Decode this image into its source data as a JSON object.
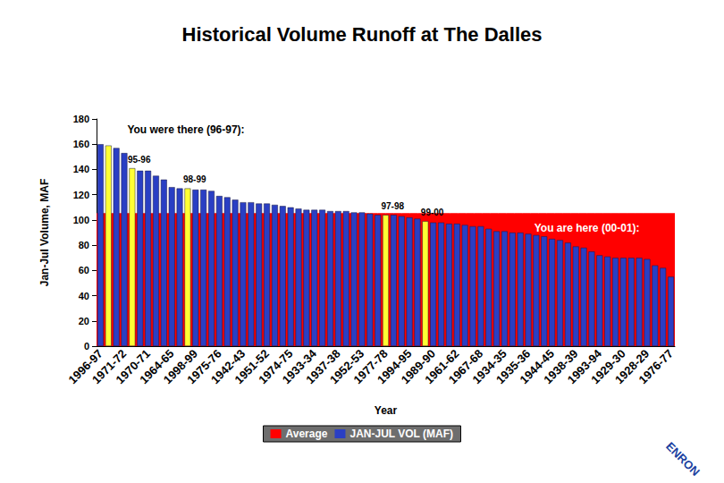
{
  "chart_data": {
    "type": "bar",
    "title": "Historical Volume Runoff at The Dalles",
    "x_label": "Year",
    "y_label": "Jan-Jul Volume, MAF",
    "categories": [
      "1996-97",
      null,
      null,
      "1971-72",
      null,
      null,
      "1970-71",
      null,
      null,
      "1964-65",
      null,
      null,
      "1998-99",
      null,
      null,
      "1975-76",
      null,
      null,
      "1942-43",
      null,
      null,
      "1951-52",
      null,
      null,
      "1974-75",
      null,
      null,
      "1933-34",
      null,
      null,
      "1937-38",
      null,
      null,
      "1952-53",
      null,
      null,
      "1977-78",
      null,
      null,
      "1994-95",
      null,
      null,
      "1989-90",
      null,
      null,
      "1961-62",
      null,
      null,
      "1967-68",
      null,
      null,
      "1934-35",
      null,
      null,
      "1935-36",
      null,
      null,
      "1944-45",
      null,
      null,
      "1938-39",
      null,
      null,
      "1993-94",
      null,
      null,
      "1929-30",
      null,
      null,
      "1928-29",
      null,
      null,
      "1976-77"
    ],
    "series": [
      {
        "name": "Average",
        "type": "area",
        "color": "#ff0000",
        "values": [
          105,
          105,
          105,
          105,
          105,
          105,
          105,
          105,
          105,
          105,
          105,
          105,
          105,
          105,
          105,
          105,
          105,
          105,
          105,
          105,
          105,
          105,
          105,
          105,
          105,
          105,
          105,
          105,
          105,
          105,
          105,
          105,
          105,
          105,
          105,
          105,
          105,
          105,
          105,
          105,
          105,
          105,
          105,
          105,
          105,
          105,
          105,
          105,
          105,
          105,
          105,
          105,
          105,
          105,
          105,
          105,
          105,
          105,
          105,
          105,
          105,
          105,
          105,
          105,
          105,
          105,
          105,
          105,
          105,
          105,
          105,
          105,
          105
        ]
      },
      {
        "name": "JAN-JUL VOL (MAF)",
        "type": "bar",
        "color": "#2a3fc4",
        "values": [
          160,
          159,
          157,
          153,
          141,
          139,
          139,
          135,
          132,
          126,
          125,
          125,
          124,
          124,
          123,
          119,
          118,
          116,
          114,
          114,
          113,
          113,
          112,
          111,
          110,
          109,
          108,
          108,
          108,
          107,
          107,
          107,
          106,
          106,
          105,
          104,
          104,
          104,
          103,
          102,
          101,
          99,
          98,
          98,
          97,
          97,
          96,
          95,
          95,
          93,
          91,
          91,
          90,
          90,
          89,
          88,
          87,
          85,
          84,
          82,
          79,
          78,
          75,
          72,
          71,
          70,
          70,
          70,
          70,
          69,
          64,
          62,
          55
        ],
        "colors": [
          "#2a3fc4",
          "#ffff33",
          "#2a3fc4",
          "#2a3fc4",
          "#ffff33",
          "#2a3fc4",
          "#2a3fc4",
          "#2a3fc4",
          "#2a3fc4",
          "#2a3fc4",
          "#2a3fc4",
          "#ffff33",
          "#2a3fc4",
          "#2a3fc4",
          "#2a3fc4",
          "#2a3fc4",
          "#2a3fc4",
          "#2a3fc4",
          "#2a3fc4",
          "#2a3fc4",
          "#2a3fc4",
          "#2a3fc4",
          "#2a3fc4",
          "#2a3fc4",
          "#2a3fc4",
          "#2a3fc4",
          "#2a3fc4",
          "#2a3fc4",
          "#2a3fc4",
          "#2a3fc4",
          "#2a3fc4",
          "#2a3fc4",
          "#2a3fc4",
          "#2a3fc4",
          "#2a3fc4",
          "#2a3fc4",
          "#ffff33",
          "#2a3fc4",
          "#2a3fc4",
          "#2a3fc4",
          "#2a3fc4",
          "#ffff33",
          "#2a3fc4",
          "#2a3fc4",
          "#2a3fc4",
          "#2a3fc4",
          "#2a3fc4",
          "#2a3fc4",
          "#2a3fc4",
          "#2a3fc4",
          "#2a3fc4",
          "#2a3fc4",
          "#2a3fc4",
          "#2a3fc4",
          "#2a3fc4",
          "#2a3fc4",
          "#2a3fc4",
          "#2a3fc4",
          "#2a3fc4",
          "#2a3fc4",
          "#2a3fc4",
          "#2a3fc4",
          "#2a3fc4",
          "#2a3fc4",
          "#2a3fc4",
          "#2a3fc4",
          "#2a3fc4",
          "#2a3fc4",
          "#2a3fc4",
          "#2a3fc4",
          "#2a3fc4",
          "#2a3fc4",
          "#2a3fc4"
        ]
      }
    ],
    "annotations": [
      "You were there (96-97):",
      "95-96",
      "98-99",
      "97-98",
      "99-00",
      "You are here (00-01):"
    ],
    "logo": "ENRON",
    "ylim": [
      0,
      180
    ],
    "yticks": [
      0,
      20,
      40,
      60,
      80,
      100,
      120,
      140,
      160,
      180
    ],
    "grid": false,
    "legend": "bottom"
  }
}
